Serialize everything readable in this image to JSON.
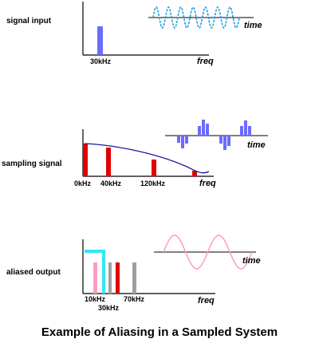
{
  "colors": {
    "blue_bar": "#6b6bff",
    "cyan_wave": "#1f9fe0",
    "red_bar": "#e00000",
    "dark_blue_curve": "#1a1aa0",
    "pink": "#ff9ac8",
    "cyan": "#33e6f5",
    "gray": "#a0a0a0",
    "axis": "#000000"
  },
  "panel1": {
    "label": "signal input",
    "tick": "30kHz",
    "freq_word": "freq",
    "time_word": "time"
  },
  "panel2": {
    "label": "sampling signal",
    "ticks": [
      "0kHz",
      "40kHz",
      "120kHz"
    ],
    "freq_word": "freq",
    "time_word": "time"
  },
  "panel3": {
    "label": "aliased output",
    "ticks": [
      "10kHz",
      "30kHz",
      "70kHz"
    ],
    "freq_word": "freq",
    "time_word": "time"
  },
  "caption": "Example of Aliasing in a Sampled System"
}
